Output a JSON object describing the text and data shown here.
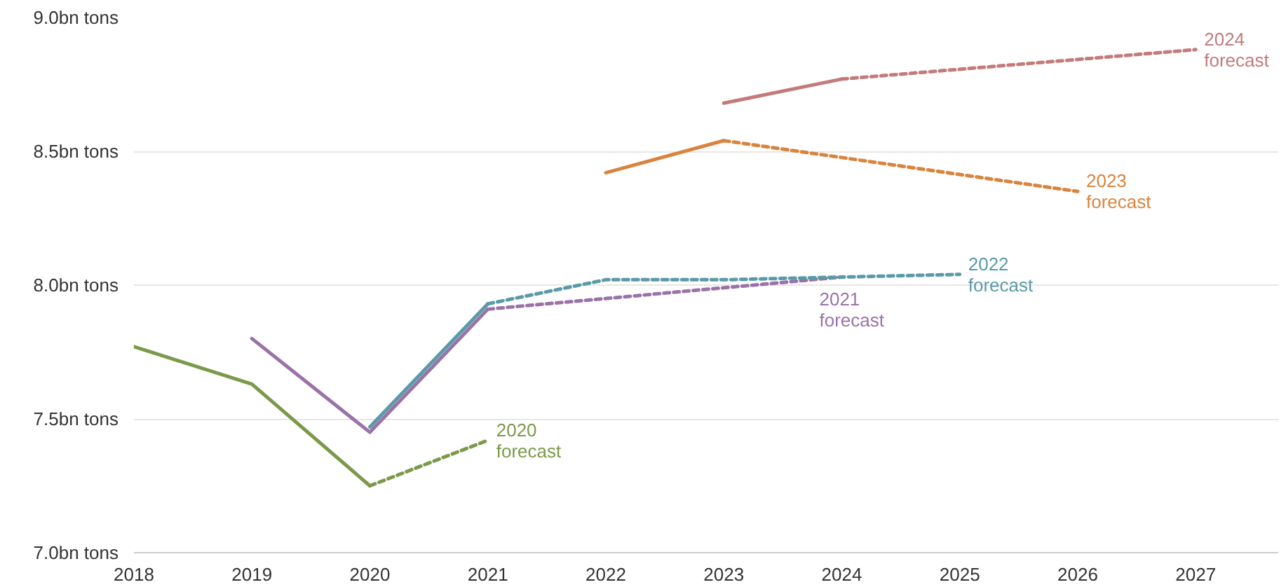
{
  "chart_data": {
    "type": "line",
    "xlim": [
      2018,
      2027.7
    ],
    "xticks": [
      2018,
      2019,
      2020,
      2021,
      2022,
      2023,
      2024,
      2025,
      2026,
      2027
    ],
    "ylim": [
      7.0,
      9.0
    ],
    "yticks": [
      {
        "value": 7.0,
        "label": "7.0bn tons"
      },
      {
        "value": 7.5,
        "label": "7.5bn tons"
      },
      {
        "value": 8.0,
        "label": "8.0bn tons"
      },
      {
        "value": 8.5,
        "label": "8.5bn tons"
      },
      {
        "value": 9.0,
        "label": "9.0bn tons"
      }
    ],
    "grid": "y",
    "marker": "none",
    "series": [
      {
        "color": "#7a9a4a",
        "line_style": "solid",
        "x": [
          2018,
          2019,
          2020
        ],
        "values": [
          7.77,
          7.63,
          7.25
        ]
      },
      {
        "name": "2020\nforecast",
        "color": "#7a9a4a",
        "line_style": "dashed",
        "x": [
          2020,
          2021
        ],
        "values": [
          7.25,
          7.42
        ]
      },
      {
        "color": "#9a72a8",
        "line_style": "solid",
        "x": [
          2019,
          2020,
          2021
        ],
        "values": [
          7.8,
          7.45,
          7.91
        ]
      },
      {
        "name": "2021\nforecast",
        "color": "#9a72a8",
        "line_style": "dashed",
        "x": [
          2021,
          2024
        ],
        "values": [
          7.91,
          8.03
        ]
      },
      {
        "color": "#5a9aa8",
        "line_style": "solid",
        "x": [
          2020,
          2021
        ],
        "values": [
          7.47,
          7.93
        ]
      },
      {
        "name": "2022\nforecast",
        "color": "#5a9aa8",
        "line_style": "dashed",
        "x": [
          2021,
          2022,
          2023,
          2024,
          2025
        ],
        "values": [
          7.93,
          8.02,
          8.02,
          8.03,
          8.04
        ]
      },
      {
        "color": "#d9843e",
        "line_style": "solid",
        "x": [
          2022,
          2023
        ],
        "values": [
          8.42,
          8.54
        ]
      },
      {
        "name": "2023\nforecast",
        "color": "#d9843e",
        "line_style": "dashed",
        "x": [
          2023,
          2026
        ],
        "values": [
          8.54,
          8.35
        ]
      },
      {
        "color": "#c47a7a",
        "line_style": "solid",
        "x": [
          2023,
          2024
        ],
        "values": [
          8.68,
          8.77
        ]
      },
      {
        "name": "2024\nforecast",
        "color": "#c47a7a",
        "line_style": "dashed",
        "x": [
          2024,
          2027
        ],
        "values": [
          8.77,
          8.88
        ]
      }
    ]
  }
}
